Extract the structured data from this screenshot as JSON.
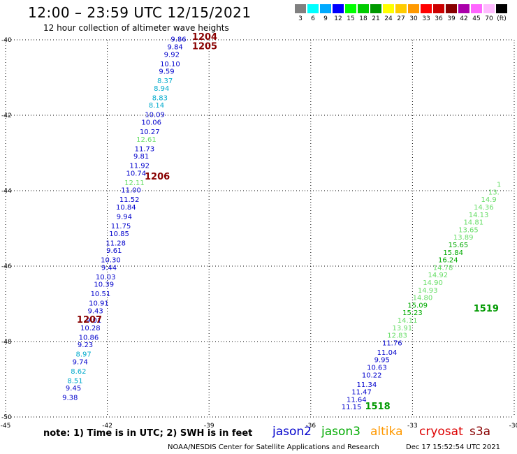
{
  "header": {
    "title": "12:00 – 23:59 UTC 12/15/2021",
    "subtitle": "12 hour collection of altimeter wave heights"
  },
  "legend": {
    "unit": "(ft)",
    "items": [
      {
        "label": "3",
        "color": "#808080"
      },
      {
        "label": "6",
        "color": "#00ffff"
      },
      {
        "label": "9",
        "color": "#00aaff"
      },
      {
        "label": "12",
        "color": "#0000ff"
      },
      {
        "label": "15",
        "color": "#00ff00"
      },
      {
        "label": "18",
        "color": "#00cc00"
      },
      {
        "label": "21",
        "color": "#009900"
      },
      {
        "label": "24",
        "color": "#ffff00"
      },
      {
        "label": "27",
        "color": "#ffcc00"
      },
      {
        "label": "30",
        "color": "#ff9900"
      },
      {
        "label": "33",
        "color": "#ff0000"
      },
      {
        "label": "36",
        "color": "#cc0000"
      },
      {
        "label": "39",
        "color": "#880000"
      },
      {
        "label": "42",
        "color": "#aa00aa"
      },
      {
        "label": "45",
        "color": "#ff66ff"
      },
      {
        "label": "70",
        "color": "#ffbbff"
      },
      {
        "label": "",
        "color": "#000000"
      }
    ]
  },
  "chart_data": {
    "type": "scatter",
    "title": "12 hour collection of altimeter wave heights",
    "x_axis": {
      "range": [
        -45,
        -30
      ],
      "ticks": [
        "-45",
        "-42",
        "-39",
        "-36",
        "-33",
        "-30"
      ],
      "unit": "longitude"
    },
    "y_axis": {
      "range": [
        -50,
        -40
      ],
      "ticks": [
        "-40",
        "-42",
        "-44",
        "-46",
        "-48",
        "-50"
      ],
      "unit": "latitude"
    },
    "grid": true,
    "tracks": [
      {
        "satellite": "jason2",
        "times": [
          {
            "label": "1204",
            "lon": -39.5,
            "lat": -40.0
          },
          {
            "label": "1205",
            "lon": -39.5,
            "lat": -40.25
          },
          {
            "label": "1206",
            "lon": -40.9,
            "lat": -43.7
          },
          {
            "label": "1207",
            "lon": -42.9,
            "lat": -47.5
          }
        ],
        "points": [
          {
            "lon": -39.9,
            "lat": -40.05,
            "v": "9.86",
            "c": "#0000cc"
          },
          {
            "lon": -40.0,
            "lat": -40.25,
            "v": "9.84",
            "c": "#0000cc"
          },
          {
            "lon": -40.1,
            "lat": -40.45,
            "v": "9.92",
            "c": "#0000cc"
          },
          {
            "lon": -40.15,
            "lat": -40.7,
            "v": "10.10",
            "c": "#0000cc"
          },
          {
            "lon": -40.25,
            "lat": -40.9,
            "v": "9.59",
            "c": "#0000cc"
          },
          {
            "lon": -40.3,
            "lat": -41.15,
            "v": "8.37",
            "c": "#00aacc"
          },
          {
            "lon": -40.4,
            "lat": -41.35,
            "v": "8.94",
            "c": "#00aacc"
          },
          {
            "lon": -40.45,
            "lat": -41.6,
            "v": "8.83",
            "c": "#00aacc"
          },
          {
            "lon": -40.55,
            "lat": -41.8,
            "v": "8.14",
            "c": "#00aacc"
          },
          {
            "lon": -40.6,
            "lat": -42.05,
            "v": "10.09",
            "c": "#0000cc"
          },
          {
            "lon": -40.7,
            "lat": -42.25,
            "v": "10.06",
            "c": "#0000cc"
          },
          {
            "lon": -40.75,
            "lat": -42.5,
            "v": "10.27",
            "c": "#0000cc"
          },
          {
            "lon": -40.85,
            "lat": -42.7,
            "v": "12.61",
            "c": "#66dd66"
          },
          {
            "lon": -40.9,
            "lat": -42.95,
            "v": "11.73",
            "c": "#0000cc"
          },
          {
            "lon": -41.0,
            "lat": -43.15,
            "v": "9.81",
            "c": "#0000cc"
          },
          {
            "lon": -41.05,
            "lat": -43.4,
            "v": "11.92",
            "c": "#0000cc"
          },
          {
            "lon": -41.15,
            "lat": -43.6,
            "v": "10.74",
            "c": "#0000cc"
          },
          {
            "lon": -41.2,
            "lat": -43.85,
            "v": "12.11",
            "c": "#66dd66"
          },
          {
            "lon": -41.3,
            "lat": -44.05,
            "v": "11.00",
            "c": "#0000cc"
          },
          {
            "lon": -41.35,
            "lat": -44.3,
            "v": "11.52",
            "c": "#0000cc"
          },
          {
            "lon": -41.45,
            "lat": -44.5,
            "v": "10.84",
            "c": "#0000cc"
          },
          {
            "lon": -41.5,
            "lat": -44.75,
            "v": "9.94",
            "c": "#0000cc"
          },
          {
            "lon": -41.6,
            "lat": -45.0,
            "v": "11.75",
            "c": "#0000cc"
          },
          {
            "lon": -41.65,
            "lat": -45.2,
            "v": "10.85",
            "c": "#0000cc"
          },
          {
            "lon": -41.75,
            "lat": -45.45,
            "v": "11.28",
            "c": "#0000cc"
          },
          {
            "lon": -41.8,
            "lat": -45.65,
            "v": "9.61",
            "c": "#0000cc"
          },
          {
            "lon": -41.9,
            "lat": -45.9,
            "v": "10.30",
            "c": "#0000cc"
          },
          {
            "lon": -41.95,
            "lat": -46.1,
            "v": "9.44",
            "c": "#0000cc"
          },
          {
            "lon": -42.05,
            "lat": -46.35,
            "v": "10.03",
            "c": "#0000cc"
          },
          {
            "lon": -42.1,
            "lat": -46.55,
            "v": "10.39",
            "c": "#0000cc"
          },
          {
            "lon": -42.2,
            "lat": -46.8,
            "v": "10.51",
            "c": "#0000cc"
          },
          {
            "lon": -42.25,
            "lat": -47.05,
            "v": "10.91",
            "c": "#0000cc"
          },
          {
            "lon": -42.35,
            "lat": -47.25,
            "v": "9.43",
            "c": "#0000cc"
          },
          {
            "lon": -42.4,
            "lat": -47.5,
            "v": "9.01",
            "c": "#0000cc"
          },
          {
            "lon": -42.5,
            "lat": -47.7,
            "v": "10.28",
            "c": "#0000cc"
          },
          {
            "lon": -42.55,
            "lat": -47.95,
            "v": "10.86",
            "c": "#0000cc"
          },
          {
            "lon": -42.65,
            "lat": -48.15,
            "v": "9.23",
            "c": "#0000cc"
          },
          {
            "lon": -42.7,
            "lat": -48.4,
            "v": "8.97",
            "c": "#00aacc"
          },
          {
            "lon": -42.8,
            "lat": -48.6,
            "v": "9.74",
            "c": "#0000cc"
          },
          {
            "lon": -42.85,
            "lat": -48.85,
            "v": "8.62",
            "c": "#00aacc"
          },
          {
            "lon": -42.95,
            "lat": -49.1,
            "v": "8.51",
            "c": "#00aacc"
          },
          {
            "lon": -43.0,
            "lat": -49.3,
            "v": "9.45",
            "c": "#0000cc"
          },
          {
            "lon": -43.1,
            "lat": -49.55,
            "v": "9.38",
            "c": "#0000cc"
          }
        ]
      },
      {
        "satellite": "jason3",
        "times": [
          {
            "label": "1518",
            "lon": -34.4,
            "lat": -49.8
          },
          {
            "label": "1519",
            "lon": -31.2,
            "lat": -47.2
          }
        ],
        "points": [
          {
            "lon": -34.8,
            "lat": -49.8,
            "v": "11.15",
            "c": "#0000cc"
          },
          {
            "lon": -34.65,
            "lat": -49.6,
            "v": "11.64",
            "c": "#0000cc"
          },
          {
            "lon": -34.5,
            "lat": -49.4,
            "v": "11.47",
            "c": "#0000cc"
          },
          {
            "lon": -34.35,
            "lat": -49.2,
            "v": "11.34",
            "c": "#0000cc"
          },
          {
            "lon": -34.2,
            "lat": -48.95,
            "v": "10.22",
            "c": "#0000cc"
          },
          {
            "lon": -34.05,
            "lat": -48.75,
            "v": "10.63",
            "c": "#0000cc"
          },
          {
            "lon": -33.9,
            "lat": -48.55,
            "v": "9.95",
            "c": "#0000cc"
          },
          {
            "lon": -33.75,
            "lat": -48.35,
            "v": "11.04",
            "c": "#0000cc"
          },
          {
            "lon": -33.6,
            "lat": -48.1,
            "v": "11.76",
            "c": "#0000cc"
          },
          {
            "lon": -33.45,
            "lat": -47.9,
            "v": "12.83",
            "c": "#66dd66"
          },
          {
            "lon": -33.3,
            "lat": -47.7,
            "v": "13.91",
            "c": "#66dd66"
          },
          {
            "lon": -33.15,
            "lat": -47.5,
            "v": "14.11",
            "c": "#66dd66"
          },
          {
            "lon": -33.0,
            "lat": -47.3,
            "v": "15.23",
            "c": "#00aa00"
          },
          {
            "lon": -32.85,
            "lat": -47.1,
            "v": "15.09",
            "c": "#00aa00"
          },
          {
            "lon": -32.7,
            "lat": -46.9,
            "v": "14.80",
            "c": "#66dd66"
          },
          {
            "lon": -32.55,
            "lat": -46.7,
            "v": "14.93",
            "c": "#66dd66"
          },
          {
            "lon": -32.4,
            "lat": -46.5,
            "v": "14.90",
            "c": "#66dd66"
          },
          {
            "lon": -32.25,
            "lat": -46.3,
            "v": "14.92",
            "c": "#66dd66"
          },
          {
            "lon": -32.1,
            "lat": -46.1,
            "v": "14.78",
            "c": "#66dd66"
          },
          {
            "lon": -31.95,
            "lat": -45.9,
            "v": "16.24",
            "c": "#00aa00"
          },
          {
            "lon": -31.8,
            "lat": -45.7,
            "v": "15.84",
            "c": "#00aa00"
          },
          {
            "lon": -31.65,
            "lat": -45.5,
            "v": "15.65",
            "c": "#00aa00"
          },
          {
            "lon": -31.5,
            "lat": -45.3,
            "v": "13.89",
            "c": "#66dd66"
          },
          {
            "lon": -31.35,
            "lat": -45.1,
            "v": "13.65",
            "c": "#66dd66"
          },
          {
            "lon": -31.2,
            "lat": -44.9,
            "v": "14.81",
            "c": "#66dd66"
          },
          {
            "lon": -31.05,
            "lat": -44.7,
            "v": "14.13",
            "c": "#66dd66"
          },
          {
            "lon": -30.9,
            "lat": -44.5,
            "v": "14.36",
            "c": "#66dd66"
          },
          {
            "lon": -30.75,
            "lat": -44.3,
            "v": "14.9",
            "c": "#66dd66"
          },
          {
            "lon": -30.6,
            "lat": -44.1,
            "v": "13.",
            "c": "#66dd66"
          },
          {
            "lon": -30.45,
            "lat": -43.9,
            "v": "1",
            "c": "#66dd66"
          }
        ]
      }
    ]
  },
  "note": "note:  1) Time is in UTC;  2) SWH is in feet",
  "satellites": [
    {
      "name": "jason2",
      "color": "#0000cc"
    },
    {
      "name": "jason3",
      "color": "#00aa00"
    },
    {
      "name": "altika",
      "color": "#ff9900"
    },
    {
      "name": "cryosat",
      "color": "#dd0000"
    },
    {
      "name": "s3a",
      "color": "#880000"
    }
  ],
  "footer": {
    "credit": "NOAA/NESDIS Center for Satellite Applications and Research",
    "timestamp": "Dec 17 15:52:54 UTC 2021"
  }
}
